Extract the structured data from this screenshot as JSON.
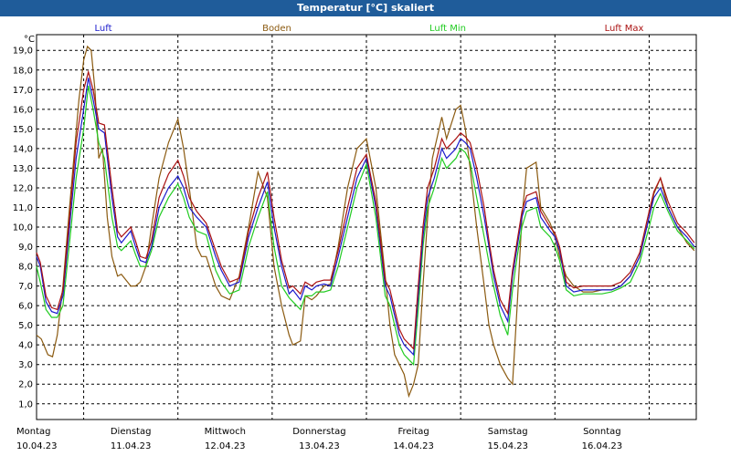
{
  "window": {
    "title": "Temperatur [°C] skaliert"
  },
  "colors": {
    "titlebar": "#1f5c9a",
    "grid": "#000000"
  },
  "chart_data": {
    "type": "line",
    "title": "Temperatur [°C] skaliert",
    "ylabel": "°C",
    "xlabel": "",
    "ylim": [
      0.2,
      19.8
    ],
    "xlim": [
      0,
      7.0
    ],
    "y_ticks": [
      "1,0",
      "2,0",
      "3,0",
      "4,0",
      "5,0",
      "6,0",
      "7,0",
      "8,0",
      "9,0",
      "10,0",
      "11,0",
      "12,0",
      "13,0",
      "14,0",
      "15,0",
      "16,0",
      "17,0",
      "18,0",
      "19,0"
    ],
    "grid": true,
    "legend_position": "top",
    "day_labels": [
      {
        "day": "Montag",
        "date": "10.04.23"
      },
      {
        "day": "Dienstag",
        "date": "11.04.23"
      },
      {
        "day": "Mittwoch",
        "date": "12.04.23"
      },
      {
        "day": "Donnerstag",
        "date": "13.04.23"
      },
      {
        "day": "Freitag",
        "date": "14.04.23"
      },
      {
        "day": "Samstag",
        "date": "15.04.23"
      },
      {
        "day": "Sonntag",
        "date": "16.04.23"
      }
    ],
    "series": [
      {
        "name": "Luft",
        "color": "#1a1acc",
        "x": [
          0,
          0.04,
          0.1,
          0.16,
          0.22,
          0.28,
          0.35,
          0.42,
          0.5,
          0.55,
          0.6,
          0.66,
          0.72,
          0.8,
          0.86,
          0.9,
          1.0,
          1.05,
          1.1,
          1.16,
          1.22,
          1.3,
          1.4,
          1.5,
          1.56,
          1.62,
          1.7,
          1.8,
          1.9,
          1.96,
          2.05,
          2.15,
          2.25,
          2.35,
          2.45,
          2.52,
          2.6,
          2.68,
          2.72,
          2.8,
          2.85,
          2.92,
          2.97,
          3.05,
          3.12,
          3.2,
          3.3,
          3.4,
          3.5,
          3.6,
          3.7,
          3.75,
          3.8,
          3.85,
          3.9,
          4.0,
          4.05,
          4.1,
          4.15,
          4.22,
          4.3,
          4.35,
          4.45,
          4.5,
          4.55,
          4.6,
          4.67,
          4.75,
          4.8,
          4.85,
          4.92,
          5.0,
          5.05,
          5.1,
          5.15,
          5.2,
          5.3,
          5.35,
          5.45,
          5.5,
          5.55,
          5.62,
          5.7,
          5.8,
          5.9,
          6.0,
          6.1,
          6.2,
          6.3,
          6.4,
          6.5,
          6.55,
          6.62,
          6.7,
          6.8,
          6.9,
          6.98
        ],
        "y": [
          8.5,
          8.0,
          6.2,
          5.7,
          5.6,
          6.5,
          10.0,
          13.5,
          16.0,
          17.6,
          16.5,
          15.0,
          14.8,
          11.5,
          9.5,
          9.2,
          9.8,
          9.0,
          8.3,
          8.2,
          9.0,
          11.0,
          12.0,
          12.6,
          12.0,
          11.0,
          10.5,
          10.0,
          8.5,
          7.8,
          7.0,
          7.2,
          9.5,
          11.0,
          12.3,
          10.0,
          8.0,
          6.6,
          6.8,
          6.3,
          7.0,
          6.8,
          7.0,
          7.1,
          7.0,
          8.5,
          10.5,
          12.5,
          13.5,
          11.0,
          7.0,
          6.5,
          5.5,
          4.5,
          4.0,
          3.5,
          6.5,
          9.5,
          11.5,
          12.5,
          14.0,
          13.5,
          14.0,
          14.5,
          14.3,
          14.0,
          12.5,
          10.5,
          9.0,
          7.5,
          6.0,
          5.2,
          7.5,
          9.0,
          10.5,
          11.3,
          11.5,
          10.5,
          9.8,
          9.5,
          8.8,
          7.0,
          6.7,
          6.8,
          6.8,
          6.8,
          6.8,
          7.0,
          7.5,
          8.5,
          10.5,
          11.5,
          12.0,
          11.0,
          10.0,
          9.5,
          9.0
        ]
      },
      {
        "name": "Boden",
        "color": "#8b5a10",
        "x": [
          0,
          0.05,
          0.12,
          0.17,
          0.22,
          0.28,
          0.35,
          0.45,
          0.5,
          0.54,
          0.58,
          0.62,
          0.66,
          0.7,
          0.75,
          0.8,
          0.86,
          0.9,
          1.0,
          1.05,
          1.1,
          1.16,
          1.22,
          1.3,
          1.4,
          1.5,
          1.56,
          1.62,
          1.7,
          1.75,
          1.8,
          1.9,
          1.96,
          2.05,
          2.15,
          2.25,
          2.35,
          2.45,
          2.52,
          2.6,
          2.68,
          2.72,
          2.8,
          2.85,
          2.92,
          2.97,
          3.05,
          3.12,
          3.2,
          3.3,
          3.4,
          3.5,
          3.6,
          3.7,
          3.75,
          3.8,
          3.85,
          3.9,
          3.95,
          4.0,
          4.05,
          4.1,
          4.15,
          4.2,
          4.3,
          4.35,
          4.45,
          4.5,
          4.55,
          4.6,
          4.67,
          4.75,
          4.8,
          4.85,
          4.92,
          5.0,
          5.05,
          5.1,
          5.15,
          5.2,
          5.3,
          5.35,
          5.45,
          5.5,
          5.55,
          5.62,
          5.7,
          5.8,
          5.9,
          6.0,
          6.1,
          6.2,
          6.3,
          6.4,
          6.5,
          6.55,
          6.62,
          6.7,
          6.8,
          6.9,
          6.98
        ],
        "y": [
          4.5,
          4.3,
          3.5,
          3.4,
          4.5,
          7.0,
          11.0,
          16.5,
          18.5,
          19.2,
          19.0,
          17.0,
          13.5,
          14.0,
          10.5,
          8.5,
          7.5,
          7.6,
          7.0,
          7.0,
          7.2,
          8.0,
          10.0,
          12.5,
          14.3,
          15.5,
          14.0,
          12.0,
          9.0,
          8.5,
          8.5,
          7.0,
          6.5,
          6.3,
          7.5,
          10.0,
          12.8,
          11.5,
          8.0,
          6.0,
          4.5,
          4.0,
          4.2,
          6.5,
          6.3,
          6.5,
          7.0,
          7.1,
          9.0,
          12.0,
          14.0,
          14.5,
          12.0,
          7.5,
          5.0,
          3.5,
          3.0,
          2.5,
          1.4,
          2.0,
          3.0,
          7.0,
          10.5,
          13.5,
          15.6,
          14.5,
          16.0,
          16.2,
          15.0,
          13.0,
          10.0,
          7.0,
          5.0,
          4.0,
          3.0,
          2.3,
          2.0,
          6.0,
          10.5,
          13.0,
          13.3,
          11.0,
          10.2,
          9.5,
          8.5,
          7.5,
          7.0,
          6.7,
          6.7,
          6.8,
          6.8,
          7.0,
          7.5,
          8.5,
          10.5,
          11.7,
          12.5,
          11.0,
          10.0,
          9.2,
          8.8
        ]
      },
      {
        "name": "Luft Min",
        "color": "#22cc22",
        "x": [
          0,
          0.04,
          0.1,
          0.16,
          0.22,
          0.28,
          0.35,
          0.42,
          0.5,
          0.55,
          0.6,
          0.66,
          0.72,
          0.8,
          0.86,
          0.9,
          1.0,
          1.05,
          1.1,
          1.16,
          1.22,
          1.3,
          1.4,
          1.5,
          1.56,
          1.62,
          1.7,
          1.8,
          1.9,
          1.96,
          2.05,
          2.15,
          2.25,
          2.35,
          2.45,
          2.52,
          2.6,
          2.68,
          2.72,
          2.8,
          2.85,
          2.92,
          2.97,
          3.05,
          3.12,
          3.2,
          3.3,
          3.4,
          3.5,
          3.6,
          3.7,
          3.75,
          3.8,
          3.85,
          3.9,
          4.0,
          4.05,
          4.1,
          4.15,
          4.22,
          4.3,
          4.35,
          4.45,
          4.5,
          4.55,
          4.6,
          4.67,
          4.75,
          4.8,
          4.85,
          4.92,
          5.0,
          5.05,
          5.1,
          5.15,
          5.2,
          5.3,
          5.35,
          5.45,
          5.5,
          5.55,
          5.62,
          5.7,
          5.8,
          5.9,
          6.0,
          6.1,
          6.2,
          6.3,
          6.4,
          6.5,
          6.55,
          6.62,
          6.7,
          6.8,
          6.9,
          6.98
        ],
        "y": [
          8.0,
          7.2,
          5.8,
          5.4,
          5.4,
          6.0,
          9.2,
          12.5,
          15.0,
          17.2,
          16.0,
          14.3,
          13.5,
          10.5,
          9.0,
          8.8,
          9.3,
          8.6,
          8.0,
          8.0,
          8.8,
          10.5,
          11.5,
          12.2,
          11.5,
          10.5,
          9.8,
          9.6,
          7.8,
          7.2,
          6.6,
          6.8,
          9.0,
          10.5,
          11.8,
          9.0,
          7.0,
          6.4,
          6.2,
          5.8,
          6.5,
          6.5,
          6.7,
          6.7,
          6.8,
          8.0,
          10.0,
          12.0,
          13.2,
          10.5,
          6.5,
          6.0,
          5.0,
          4.0,
          3.5,
          3.0,
          5.8,
          9.0,
          11.0,
          12.0,
          13.5,
          13.0,
          13.5,
          14.0,
          13.8,
          13.3,
          11.5,
          9.5,
          8.2,
          7.0,
          5.5,
          4.5,
          6.8,
          8.5,
          10.0,
          10.8,
          11.0,
          10.0,
          9.5,
          9.0,
          8.3,
          6.8,
          6.5,
          6.6,
          6.6,
          6.6,
          6.7,
          6.9,
          7.2,
          8.2,
          10.0,
          11.0,
          11.7,
          10.8,
          9.8,
          9.3,
          8.9
        ]
      },
      {
        "name": "Luft Max",
        "color": "#aa1111",
        "x": [
          0,
          0.04,
          0.1,
          0.16,
          0.22,
          0.28,
          0.35,
          0.42,
          0.5,
          0.55,
          0.6,
          0.66,
          0.72,
          0.8,
          0.86,
          0.9,
          1.0,
          1.05,
          1.1,
          1.16,
          1.22,
          1.3,
          1.4,
          1.5,
          1.56,
          1.62,
          1.7,
          1.8,
          1.9,
          1.96,
          2.05,
          2.15,
          2.25,
          2.35,
          2.45,
          2.52,
          2.6,
          2.68,
          2.72,
          2.8,
          2.85,
          2.92,
          2.97,
          3.05,
          3.12,
          3.2,
          3.3,
          3.4,
          3.5,
          3.6,
          3.7,
          3.75,
          3.8,
          3.85,
          3.9,
          4.0,
          4.05,
          4.1,
          4.15,
          4.22,
          4.3,
          4.35,
          4.45,
          4.5,
          4.55,
          4.6,
          4.67,
          4.75,
          4.8,
          4.85,
          4.92,
          5.0,
          5.05,
          5.1,
          5.15,
          5.2,
          5.3,
          5.35,
          5.45,
          5.5,
          5.55,
          5.62,
          5.7,
          5.8,
          5.9,
          6.0,
          6.1,
          6.2,
          6.3,
          6.4,
          6.5,
          6.55,
          6.62,
          6.7,
          6.8,
          6.9,
          6.98
        ],
        "y": [
          8.7,
          8.2,
          6.5,
          5.9,
          5.8,
          6.8,
          10.5,
          14.3,
          17.0,
          17.9,
          17.0,
          15.3,
          15.2,
          12.0,
          9.8,
          9.5,
          10.0,
          9.3,
          8.5,
          8.4,
          9.3,
          11.5,
          12.7,
          13.4,
          12.6,
          11.5,
          10.8,
          10.2,
          8.8,
          8.0,
          7.2,
          7.4,
          9.8,
          11.5,
          12.8,
          10.5,
          8.3,
          6.9,
          7.0,
          6.6,
          7.2,
          7.0,
          7.2,
          7.3,
          7.3,
          8.8,
          11.0,
          13.0,
          13.7,
          11.3,
          7.3,
          6.8,
          5.8,
          4.8,
          4.3,
          3.8,
          7.0,
          10.0,
          12.0,
          13.0,
          14.5,
          14.0,
          14.5,
          14.8,
          14.6,
          14.3,
          13.0,
          11.0,
          9.3,
          7.8,
          6.3,
          5.6,
          7.8,
          9.3,
          10.8,
          11.6,
          11.8,
          10.8,
          10.0,
          9.7,
          9.0,
          7.2,
          6.9,
          7.0,
          7.0,
          7.0,
          7.0,
          7.2,
          7.7,
          8.7,
          10.8,
          11.8,
          12.5,
          11.3,
          10.2,
          9.7,
          9.2
        ]
      }
    ]
  }
}
